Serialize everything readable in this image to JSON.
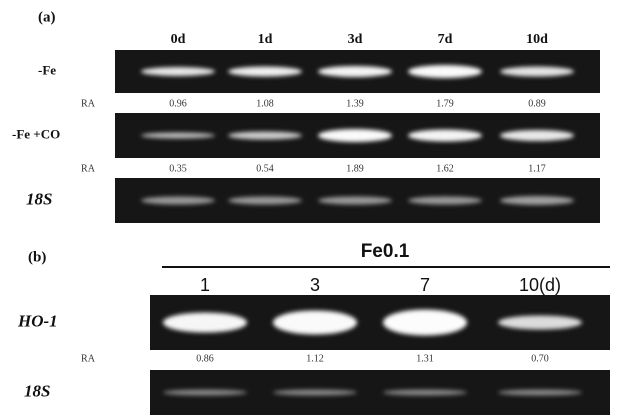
{
  "panel_a": {
    "label": "(a)",
    "columns": [
      "0d",
      "1d",
      "3d",
      "7d",
      "10d"
    ],
    "rows": [
      {
        "name": "-Fe",
        "ra_label": "RA",
        "ra": [
          "0.96",
          "1.08",
          "1.39",
          "1.79",
          "0.89"
        ]
      },
      {
        "name": "-Fe +CO",
        "ra_label": "RA",
        "ra": [
          "0.35",
          "0.54",
          "1.89",
          "1.62",
          "1.17"
        ]
      },
      {
        "name": "18S"
      }
    ]
  },
  "panel_b": {
    "label": "(b)",
    "group": "Fe0.1",
    "columns": [
      "1",
      "3",
      "7",
      "10(d)"
    ],
    "rows": [
      {
        "name": "HO-1",
        "ra_label": "RA",
        "ra": [
          "0.86",
          "1.12",
          "1.31",
          "0.70"
        ]
      },
      {
        "name": "18S"
      }
    ]
  }
}
